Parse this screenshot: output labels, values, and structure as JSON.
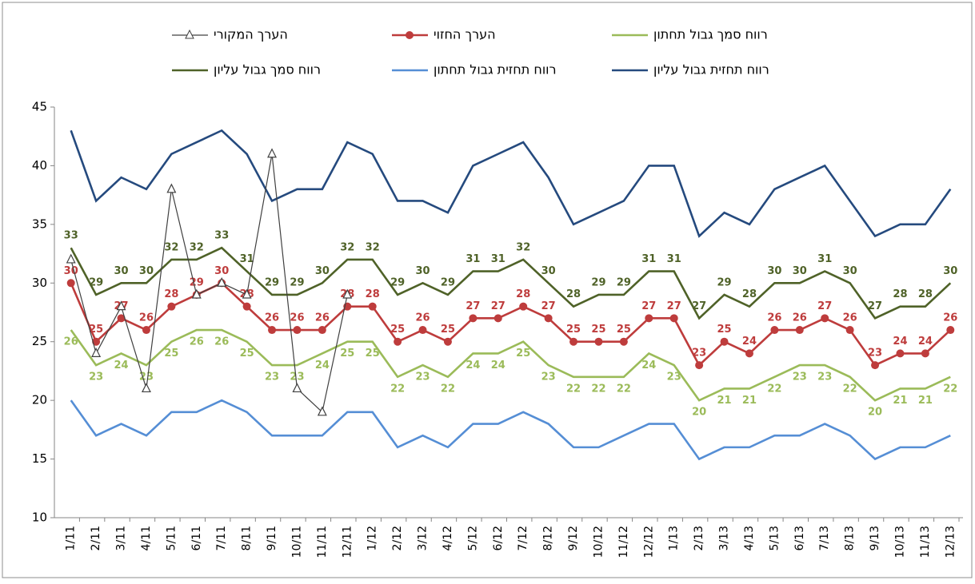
{
  "chart_data": {
    "type": "line",
    "categories": [
      "1/11",
      "2/11",
      "3/11",
      "4/11",
      "5/11",
      "6/11",
      "7/11",
      "8/11",
      "9/11",
      "10/11",
      "11/11",
      "12/11",
      "1/12",
      "2/12",
      "3/12",
      "4/12",
      "5/12",
      "6/12",
      "7/12",
      "8/12",
      "9/12",
      "10/12",
      "11/12",
      "12/12",
      "1/13",
      "2/13",
      "3/13",
      "4/13",
      "5/13",
      "6/13",
      "7/13",
      "8/13",
      "9/13",
      "10/13",
      "11/13",
      "12/13"
    ],
    "series": [
      {
        "name": "הערך המקורי",
        "color": "#404040",
        "marker": "triangle",
        "show_labels": false,
        "values": [
          32,
          24,
          28,
          21,
          38,
          29,
          30,
          29,
          41,
          21,
          19,
          29,
          null,
          null,
          null,
          null,
          null,
          null,
          null,
          null,
          null,
          null,
          null,
          null,
          null,
          null,
          null,
          null,
          null,
          null,
          null,
          null,
          null,
          null,
          null,
          null
        ]
      },
      {
        "name": "הערך החזוי",
        "color": "#be3c3c",
        "marker": "circle",
        "show_labels": true,
        "label_position": "above",
        "values": [
          30,
          25,
          27,
          26,
          28,
          29,
          30,
          28,
          26,
          26,
          26,
          28,
          28,
          25,
          26,
          25,
          27,
          27,
          28,
          27,
          25,
          25,
          25,
          27,
          27,
          23,
          25,
          24,
          26,
          26,
          27,
          26,
          23,
          24,
          24,
          26
        ]
      },
      {
        "name": "רווח סמך גבול תחתון",
        "color": "#9bbb59",
        "marker": null,
        "show_labels": true,
        "label_position": "below",
        "values": [
          26,
          23,
          24,
          23,
          25,
          26,
          26,
          25,
          23,
          23,
          24,
          25,
          25,
          22,
          23,
          22,
          24,
          24,
          25,
          23,
          22,
          22,
          22,
          24,
          23,
          20,
          21,
          21,
          22,
          23,
          23,
          22,
          20,
          21,
          21,
          22
        ]
      },
      {
        "name": "רווח סמך גבול עליון",
        "color": "#4f6228",
        "marker": null,
        "show_labels": true,
        "label_position": "above",
        "values": [
          33,
          29,
          30,
          30,
          32,
          32,
          33,
          31,
          29,
          29,
          30,
          32,
          32,
          29,
          30,
          29,
          31,
          31,
          32,
          30,
          28,
          29,
          29,
          31,
          31,
          27,
          29,
          28,
          30,
          30,
          31,
          30,
          27,
          28,
          28,
          30
        ]
      },
      {
        "name": "רווח תחזית גבול תחתון",
        "color": "#558ed5",
        "marker": null,
        "show_labels": false,
        "values": [
          20,
          17,
          18,
          17,
          19,
          19,
          20,
          19,
          17,
          17,
          17,
          19,
          19,
          16,
          17,
          16,
          18,
          18,
          19,
          18,
          16,
          16,
          17,
          18,
          18,
          15,
          16,
          16,
          17,
          17,
          18,
          17,
          15,
          16,
          16,
          17
        ]
      },
      {
        "name": "רווח תחזית גבול עליון",
        "color": "#254a7e",
        "marker": null,
        "show_labels": false,
        "values": [
          43,
          37,
          39,
          38,
          41,
          42,
          43,
          41,
          37,
          38,
          38,
          42,
          41,
          37,
          37,
          36,
          40,
          41,
          42,
          39,
          35,
          36,
          37,
          40,
          40,
          34,
          36,
          35,
          38,
          39,
          40,
          37,
          34,
          35,
          35,
          38
        ]
      }
    ],
    "ylim": [
      10,
      45
    ],
    "yticks": [
      10,
      15,
      20,
      25,
      30,
      35,
      40,
      45
    ],
    "grid": false,
    "legend": "top"
  }
}
